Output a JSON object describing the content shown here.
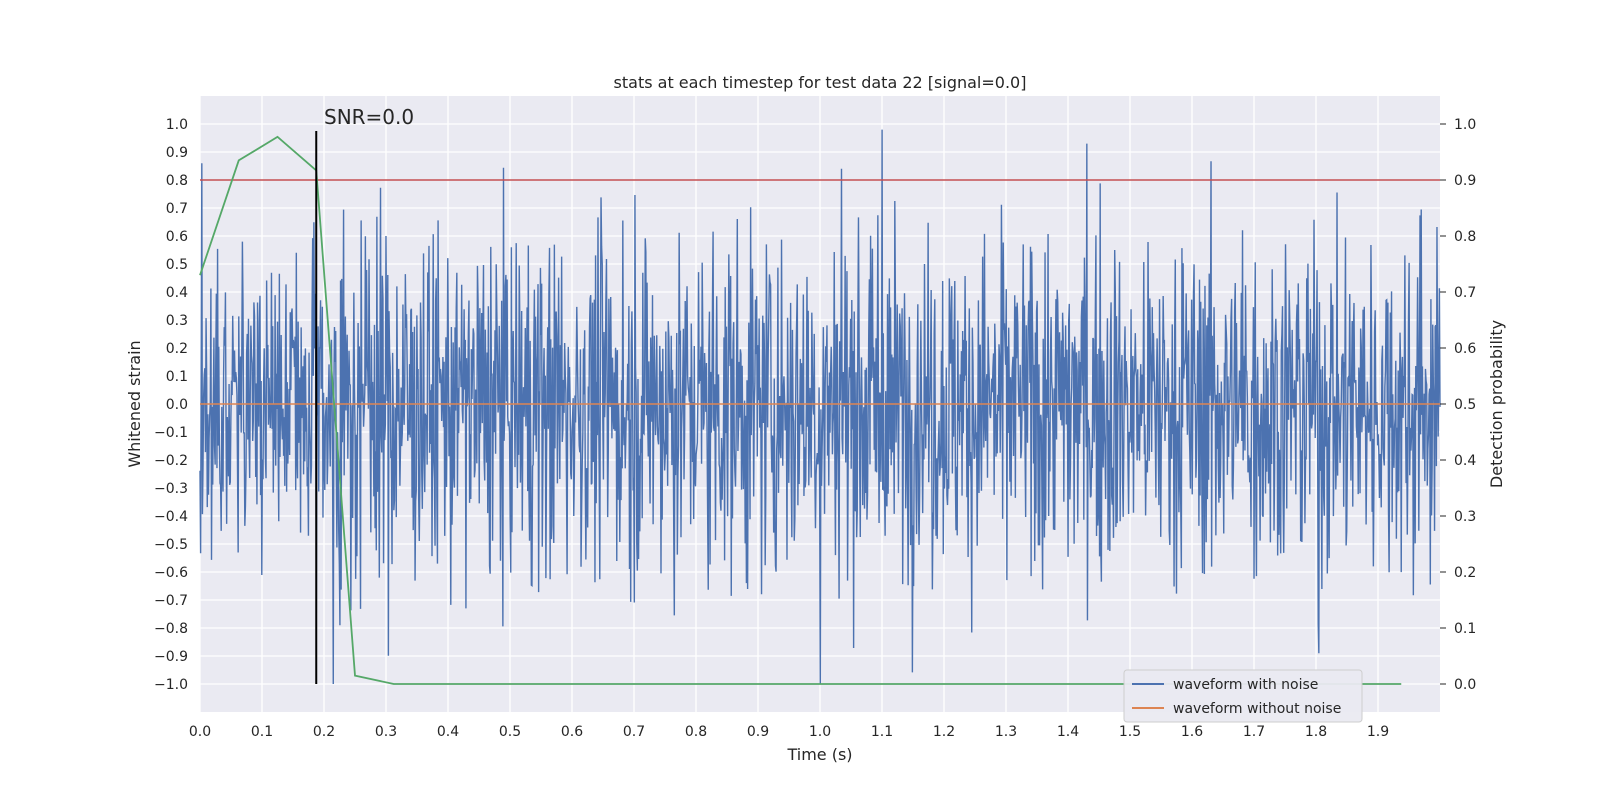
{
  "chart_data": {
    "type": "line",
    "title": "stats at each timestep for test data 22 [signal=0.0]",
    "xlabel": "Time (s)",
    "ylabel": "Whitened strain",
    "y2label": "Detection probability",
    "xlim": [
      0.0,
      2.0
    ],
    "ylim": [
      -1.1,
      1.1
    ],
    "y2lim": [
      -0.05,
      1.05
    ],
    "xticks": [
      "0.0",
      "0.1",
      "0.2",
      "0.3",
      "0.4",
      "0.5",
      "0.6",
      "0.7",
      "0.8",
      "0.9",
      "1.0",
      "1.1",
      "1.2",
      "1.3",
      "1.4",
      "1.5",
      "1.6",
      "1.7",
      "1.8",
      "1.9"
    ],
    "yticks": [
      "1.0",
      "0.9",
      "0.8",
      "0.7",
      "0.6",
      "0.5",
      "0.4",
      "0.3",
      "0.2",
      "0.1",
      "0.0",
      "−0.1",
      "−0.2",
      "−0.3",
      "−0.4",
      "−0.5",
      "−0.6",
      "−0.7",
      "−0.8",
      "−0.9",
      "−1.0"
    ],
    "y2ticks": [
      "1.0",
      "0.9",
      "0.8",
      "0.7",
      "0.6",
      "0.5",
      "0.4",
      "0.3",
      "0.2",
      "0.1",
      "0.0"
    ],
    "grid": true,
    "legend_position": "bottom-right",
    "series": [
      {
        "name": "waveform with noise",
        "color": "#4c72b0",
        "axis": "left",
        "description": "noisy whitened strain, approx. random in [-1, 1]",
        "num_points": 2048,
        "x_range": [
          0.0,
          2.0
        ],
        "y_range": [
          -1.0,
          1.0
        ],
        "approx_std": 0.3,
        "peaks": [
          {
            "x": 0.003,
            "y": 0.86
          },
          {
            "x": 1.1,
            "y": 0.98
          },
          {
            "x": 1.43,
            "y": 0.93
          },
          {
            "x": 1.035,
            "y": 0.84
          },
          {
            "x": 0.215,
            "y": -1.0
          },
          {
            "x": 1.0,
            "y": -1.0
          },
          {
            "x": 1.805,
            "y": -0.89
          }
        ]
      },
      {
        "name": "waveform without noise",
        "color": "#dd8452",
        "axis": "left",
        "x": [
          0.0,
          2.0
        ],
        "y": [
          0.0,
          0.0
        ]
      },
      {
        "name": "detection probability",
        "color": "#55a868",
        "axis": "right",
        "x": [
          0.0,
          0.0625,
          0.125,
          0.1875,
          0.25,
          0.3125,
          0.375,
          0.4375,
          0.5,
          0.5625,
          0.625,
          0.6875,
          0.75,
          0.8125,
          0.875,
          0.9375,
          1.0,
          1.0625,
          1.125,
          1.1875,
          1.25,
          1.3125,
          1.375,
          1.4375,
          1.5,
          1.5625,
          1.625,
          1.6875,
          1.75,
          1.8125,
          1.875,
          1.9375
        ],
        "y": [
          0.73,
          0.935,
          0.977,
          0.917,
          0.015,
          0.0,
          0.0,
          0.0,
          0.0,
          0.0,
          0.0,
          0.0,
          0.0,
          0.0,
          0.0,
          0.0,
          0.0,
          0.0,
          0.0,
          0.0,
          0.0,
          0.0,
          0.0,
          0.0,
          0.0,
          0.0,
          0.0,
          0.0,
          0.0,
          0.0,
          0.0,
          0.0
        ]
      }
    ],
    "threshold": {
      "value": 0.9,
      "axis": "right",
      "color": "#c44e52"
    },
    "vline": {
      "x": 0.1875,
      "y_from": -1.0,
      "y_to": 0.975,
      "color": "#000000"
    },
    "annotations": [
      {
        "text": "SNR=0.0",
        "x": 0.2,
        "y": 0.98
      }
    ],
    "legend": [
      "waveform with noise",
      "waveform without noise"
    ]
  }
}
